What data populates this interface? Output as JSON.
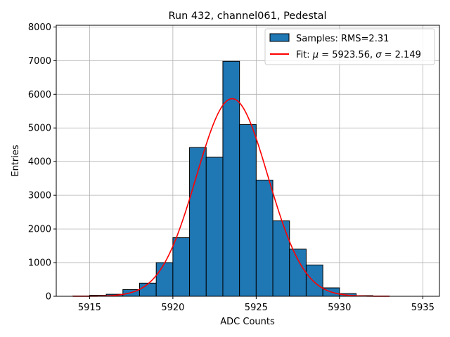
{
  "chart_data": {
    "type": "bar",
    "title": "Run 432, channel061, Pedestal",
    "xlabel": "ADC Counts",
    "ylabel": "Entries",
    "xlim": [
      5913.0,
      5936.0
    ],
    "ylim": [
      0,
      8050
    ],
    "xticks": [
      5915,
      5920,
      5925,
      5930,
      5935
    ],
    "yticks": [
      0,
      1000,
      2000,
      3000,
      4000,
      5000,
      6000,
      7000,
      8000
    ],
    "grid": true,
    "legend_position": "top-right",
    "bin_width": 1,
    "bins": [
      {
        "left": 5914,
        "value": 10
      },
      {
        "left": 5915,
        "value": 30
      },
      {
        "left": 5916,
        "value": 60
      },
      {
        "left": 5917,
        "value": 200
      },
      {
        "left": 5918,
        "value": 390
      },
      {
        "left": 5919,
        "value": 1000
      },
      {
        "left": 5920,
        "value": 1740
      },
      {
        "left": 5921,
        "value": 4420
      },
      {
        "left": 5922,
        "value": 4130
      },
      {
        "left": 5923,
        "value": 6980
      },
      {
        "left": 5924,
        "value": 5100
      },
      {
        "left": 5925,
        "value": 3450
      },
      {
        "left": 5926,
        "value": 2240
      },
      {
        "left": 5927,
        "value": 1400
      },
      {
        "left": 5928,
        "value": 930
      },
      {
        "left": 5929,
        "value": 250
      },
      {
        "left": 5930,
        "value": 80
      },
      {
        "left": 5931,
        "value": 20
      },
      {
        "left": 5932,
        "value": 5
      }
    ],
    "series": [
      {
        "name": "Samples: RMS=2.31",
        "kind": "histogram",
        "color": "#1f77b4",
        "edge_color": "#000000"
      },
      {
        "name": "Fit: μ = 5923.56, σ = 2.149",
        "kind": "gaussian-fit",
        "color": "#ff0000",
        "mu": 5923.56,
        "sigma": 2.149,
        "amplitude": 5870,
        "x_range": [
          5914,
          5933
        ]
      }
    ],
    "legend": {
      "hist_label_text": "Samples: RMS=2.31",
      "fit_prefix": "Fit: ",
      "mu_symbol": "μ",
      "fit_mu_part": " = 5923.56, ",
      "sigma_symbol": "σ",
      "fit_sigma_part": " = 2.149"
    }
  }
}
